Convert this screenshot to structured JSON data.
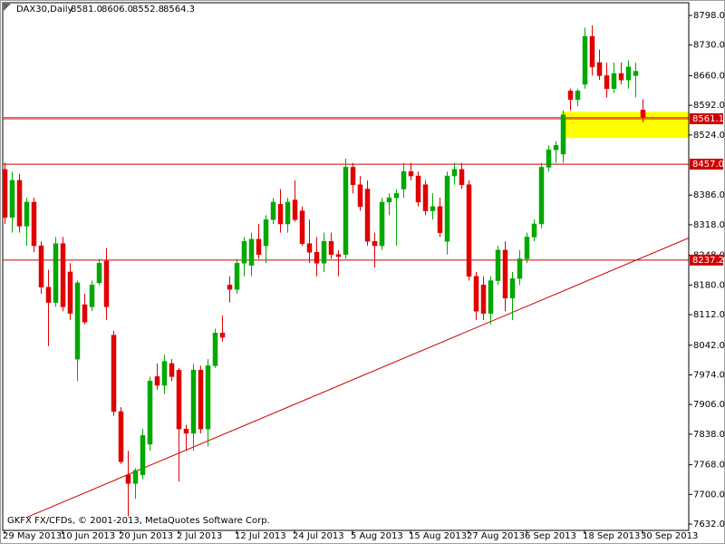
{
  "chart_data": {
    "type": "candlestick",
    "title": "DAX30,Daily",
    "ohlc_labels": [
      "8581.0",
      "8606.0",
      "8552.8",
      "8564.3"
    ],
    "copyright": "GKFX FX/CFDs, © 2001-2013, MetaQuotes Software Corp.",
    "categories": [
      "29 May 2013",
      null,
      null,
      null,
      null,
      null,
      null,
      null,
      "10 Jun 2013",
      null,
      null,
      null,
      null,
      null,
      null,
      null,
      "20 Jun 2013",
      null,
      null,
      null,
      null,
      null,
      null,
      null,
      "2 Jul 2013",
      null,
      null,
      null,
      null,
      null,
      null,
      null,
      "12 Jul 2013",
      null,
      null,
      null,
      null,
      null,
      null,
      null,
      "24 Jul 2013",
      null,
      null,
      null,
      null,
      null,
      null,
      null,
      "5 Aug 2013",
      null,
      null,
      null,
      null,
      null,
      null,
      null,
      "15 Aug 2013",
      null,
      null,
      null,
      null,
      null,
      null,
      null,
      "27 Aug 2013",
      null,
      null,
      null,
      null,
      null,
      null,
      null,
      "6 Sep 2013",
      null,
      null,
      null,
      null,
      null,
      null,
      null,
      "18 Sep 2013",
      null,
      null,
      null,
      null,
      null,
      null,
      null,
      "30 Sep 2013"
    ],
    "open": [
      8445,
      8335,
      8420,
      8315,
      8370,
      8270,
      8175,
      8140,
      8275,
      8210,
      8010,
      8135,
      8130,
      8185,
      8235,
      8065,
      7890,
      7745,
      7725,
      7745,
      7815,
      7970,
      7950,
      8000,
      7985,
      7850,
      7840,
      7985,
      7850,
      7995,
      8070,
      8180,
      8170,
      8230,
      8225,
      8285,
      8270,
      8330,
      8365,
      8320,
      8375,
      8350,
      8275,
      8255,
      8230,
      8280,
      8250,
      8250,
      8450,
      8410,
      8400,
      8280,
      8270,
      8370,
      8380,
      8400,
      8440,
      8430,
      8410,
      8350,
      8360,
      8280,
      8430,
      8445,
      8410,
      8200,
      8180,
      8115,
      8190,
      8260,
      8150,
      8195,
      8240,
      8290,
      8320,
      8450,
      8490,
      8480,
      8625,
      8605,
      8640,
      8750,
      8690,
      8660,
      8630,
      8665,
      8650,
      8660,
      8581
    ],
    "high": [
      8460,
      8440,
      8435,
      8380,
      8380,
      8280,
      8215,
      8290,
      8290,
      8230,
      8190,
      8160,
      8190,
      8240,
      8265,
      8075,
      7900,
      7800,
      7760,
      7850,
      7970,
      8000,
      8020,
      8010,
      7990,
      7860,
      8000,
      7995,
      8010,
      8080,
      8110,
      8200,
      8240,
      8290,
      8300,
      8320,
      8340,
      8380,
      8400,
      8380,
      8420,
      8360,
      8330,
      8290,
      8300,
      8300,
      8260,
      8470,
      8460,
      8430,
      8420,
      8300,
      8380,
      8390,
      8400,
      8460,
      8460,
      8440,
      8420,
      8390,
      8380,
      8440,
      8460,
      8460,
      8420,
      8210,
      8200,
      8200,
      8270,
      8280,
      8210,
      8260,
      8300,
      8330,
      8460,
      8500,
      8510,
      8580,
      8630,
      8630,
      8770,
      8775,
      8720,
      8690,
      8690,
      8690,
      8695,
      8690,
      8606
    ],
    "low": [
      8320,
      8300,
      8300,
      8270,
      8255,
      8160,
      8040,
      8130,
      8120,
      8100,
      7960,
      8090,
      8120,
      8180,
      8100,
      7880,
      7770,
      7650,
      7690,
      7735,
      7800,
      7940,
      7930,
      7960,
      7730,
      7800,
      7800,
      7840,
      7810,
      7990,
      8050,
      8140,
      8160,
      8200,
      8200,
      8240,
      8230,
      8320,
      8300,
      8300,
      8325,
      8270,
      8230,
      8200,
      8210,
      8240,
      8200,
      8240,
      8390,
      8350,
      8270,
      8220,
      8260,
      8340,
      8270,
      8380,
      8420,
      8360,
      8340,
      8330,
      8290,
      8250,
      8410,
      8400,
      8190,
      8100,
      8100,
      8090,
      8180,
      8120,
      8100,
      8180,
      8230,
      8280,
      8310,
      8440,
      8460,
      8460,
      8580,
      8590,
      8630,
      8660,
      8650,
      8610,
      8620,
      8640,
      8630,
      8610,
      8552.8
    ],
    "close": [
      8335,
      8420,
      8315,
      8370,
      8270,
      8175,
      8140,
      8275,
      8130,
      8115,
      8185,
      8095,
      8180,
      8230,
      8130,
      7890,
      7775,
      7725,
      7755,
      7835,
      7960,
      7950,
      8005,
      7970,
      7850,
      7840,
      7985,
      7850,
      7995,
      8070,
      8060,
      8170,
      8230,
      8280,
      8285,
      8250,
      8330,
      8370,
      8320,
      8370,
      8330,
      8275,
      8255,
      8230,
      8280,
      8250,
      8245,
      8450,
      8410,
      8360,
      8280,
      8270,
      8370,
      8380,
      8390,
      8440,
      8430,
      8370,
      8350,
      8360,
      8300,
      8430,
      8445,
      8410,
      8200,
      8120,
      8115,
      8190,
      8260,
      8150,
      8195,
      8240,
      8290,
      8320,
      8450,
      8490,
      8500,
      8570,
      8605,
      8625,
      8750,
      8680,
      8660,
      8630,
      8665,
      8650,
      8680,
      8670,
      8564.3
    ],
    "up_color": "#00a800",
    "down_color": "#e00000",
    "ylim": [
      7617.5,
      8827.1
    ],
    "yticks": [
      {
        "value": 8798,
        "label": "8798.0"
      },
      {
        "value": 8730,
        "label": "8730.0"
      },
      {
        "value": 8660,
        "label": "8660.0"
      },
      {
        "value": 8592,
        "label": "8592.0"
      },
      {
        "value": 8524,
        "label": "8524.0"
      },
      {
        "value": 8386,
        "label": "8386.0"
      },
      {
        "value": 8318,
        "label": "8318.0"
      },
      {
        "value": 8248,
        "label": "8248.0"
      },
      {
        "value": 8180,
        "label": "8180.0"
      },
      {
        "value": 8112,
        "label": "8112.0"
      },
      {
        "value": 8042,
        "label": "8042.0"
      },
      {
        "value": 7974,
        "label": "7974.0"
      },
      {
        "value": 7906,
        "label": "7906.0"
      },
      {
        "value": 7838,
        "label": "7838.0"
      },
      {
        "value": 7768,
        "label": "7768.0"
      },
      {
        "value": 7700,
        "label": "7700.0"
      },
      {
        "value": 7632,
        "label": "7632.0"
      }
    ],
    "levels": [
      8561.1,
      {
        "value": 8457,
        "label": "8457.0"
      },
      8237.2
    ],
    "level_color": "#d00000",
    "trendline": [
      [
        3,
        7647
      ],
      [
        94.4,
        8288
      ]
    ],
    "zone": {
      "start": 77,
      "prices": [
        8517,
        8577
      ],
      "color": "#ffff00"
    }
  }
}
